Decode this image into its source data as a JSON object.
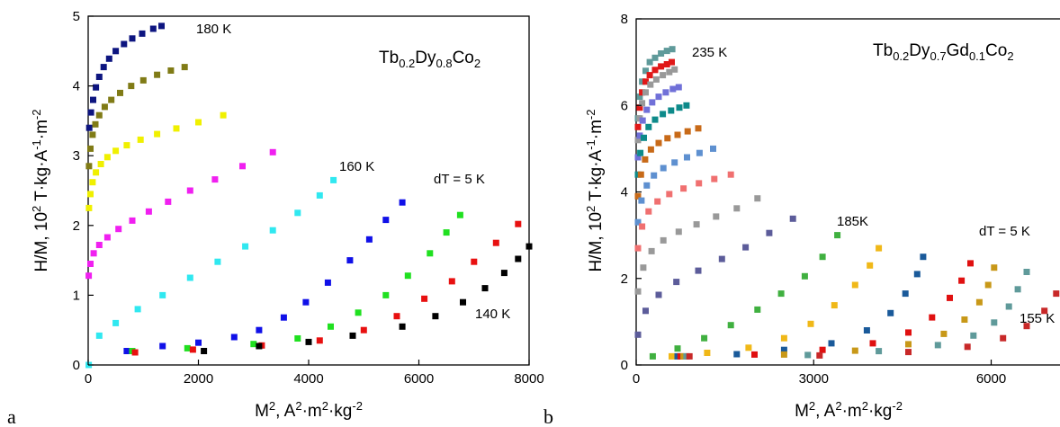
{
  "panels": [
    {
      "panel_label": "a",
      "composition": {
        "parts": [
          "Tb",
          "0.2",
          "Dy",
          "0.8",
          "Co",
          "2"
        ]
      },
      "step_label": "dT = 5 K",
      "ylabel": {
        "parts": [
          "H/M, 10",
          "2",
          " T·kg·A",
          "-1",
          "·m",
          "-2"
        ]
      },
      "xlabel": {
        "parts": [
          "M",
          "2",
          ", A",
          "2",
          "·m",
          "2",
          "·kg",
          "-2"
        ]
      }
    },
    {
      "panel_label": "b",
      "composition": {
        "parts": [
          "Tb",
          "0.2",
          "Dy",
          "0.7",
          "Gd",
          "0.1",
          "Co",
          "2"
        ]
      },
      "step_label": "dT = 5 K",
      "ylabel": {
        "parts": [
          "H/M, 10",
          "2",
          " T·kg·A",
          "-1",
          "·m",
          "-2"
        ]
      },
      "xlabel": {
        "parts": [
          "M",
          "2",
          ", A",
          "2",
          "·m",
          "2",
          "·kg",
          "-2"
        ]
      }
    }
  ],
  "chart_data": [
    {
      "type": "scatter",
      "title": "Tb0.2Dy0.8Co2",
      "xlim": [
        0,
        8000
      ],
      "ylim": [
        0,
        5
      ],
      "xticks": [
        0,
        2000,
        4000,
        6000,
        8000
      ],
      "yticks": [
        0,
        1,
        2,
        3,
        4,
        5
      ],
      "grid": false,
      "series": [
        {
          "name": "180 K",
          "color": "#0d1580",
          "x": [
            20,
            50,
            90,
            140,
            200,
            280,
            380,
            500,
            650,
            800,
            980,
            1180,
            1330
          ],
          "y": [
            3.4,
            3.62,
            3.8,
            3.98,
            4.13,
            4.27,
            4.39,
            4.5,
            4.6,
            4.68,
            4.75,
            4.82,
            4.86
          ]
        },
        {
          "name": "",
          "color": "#807b16",
          "x": [
            15,
            40,
            80,
            130,
            200,
            300,
            420,
            580,
            780,
            1000,
            1250,
            1500,
            1750
          ],
          "y": [
            2.85,
            3.1,
            3.3,
            3.45,
            3.58,
            3.7,
            3.8,
            3.9,
            4.0,
            4.08,
            4.16,
            4.22,
            4.27
          ]
        },
        {
          "name": "",
          "color": "#f0f000",
          "x": [
            15,
            40,
            80,
            140,
            230,
            350,
            500,
            700,
            950,
            1250,
            1600,
            2000,
            2450
          ],
          "y": [
            2.25,
            2.45,
            2.62,
            2.76,
            2.88,
            2.98,
            3.07,
            3.15,
            3.23,
            3.31,
            3.39,
            3.48,
            3.58
          ]
        },
        {
          "name": "",
          "color": "#f020f0",
          "x": [
            10,
            40,
            100,
            200,
            350,
            550,
            800,
            1100,
            1450,
            1850,
            2300,
            2800,
            3350
          ],
          "y": [
            1.28,
            1.45,
            1.6,
            1.72,
            1.83,
            1.95,
            2.07,
            2.2,
            2.34,
            2.5,
            2.66,
            2.85,
            3.05
          ]
        },
        {
          "name": "160 K",
          "color": "#30e8f0",
          "x": [
            10,
            200,
            500,
            900,
            1350,
            1850,
            2350,
            2850,
            3350,
            3800,
            4200,
            4450
          ],
          "y": [
            0.0,
            0.42,
            0.6,
            0.8,
            1.0,
            1.25,
            1.48,
            1.7,
            1.93,
            2.18,
            2.43,
            2.65
          ]
        },
        {
          "name": "",
          "color": "#1010e8",
          "x": [
            700,
            1350,
            2000,
            2650,
            3100,
            3550,
            3950,
            4350,
            4750,
            5100,
            5400,
            5700
          ],
          "y": [
            0.2,
            0.27,
            0.32,
            0.4,
            0.5,
            0.68,
            0.9,
            1.18,
            1.5,
            1.8,
            2.08,
            2.33
          ]
        },
        {
          "name": "",
          "color": "#20e020",
          "x": [
            800,
            1800,
            3000,
            3800,
            4400,
            4900,
            5400,
            5800,
            6200,
            6500,
            6750
          ],
          "y": [
            0.2,
            0.24,
            0.3,
            0.38,
            0.55,
            0.75,
            1.0,
            1.28,
            1.6,
            1.9,
            2.15
          ]
        },
        {
          "name": "",
          "color": "#e81010",
          "x": [
            850,
            1900,
            3150,
            4200,
            5000,
            5600,
            6100,
            6600,
            7000,
            7400,
            7800
          ],
          "y": [
            0.18,
            0.22,
            0.28,
            0.35,
            0.5,
            0.7,
            0.95,
            1.2,
            1.48,
            1.75,
            2.02
          ]
        },
        {
          "name": "140 K",
          "color": "#000000",
          "x": [
            2100,
            3100,
            4000,
            4800,
            5700,
            6300,
            6800,
            7200,
            7550,
            7800,
            8000
          ],
          "y": [
            0.2,
            0.27,
            0.33,
            0.42,
            0.55,
            0.7,
            0.9,
            1.1,
            1.32,
            1.52,
            1.7
          ]
        }
      ],
      "annotations": [
        "180 K",
        "160 K",
        "140 K",
        "dT = 5 K"
      ]
    },
    {
      "type": "scatter",
      "title": "Tb0.2Dy0.7Gd0.1Co2",
      "xlim": [
        0,
        7300
      ],
      "ylim": [
        0,
        8
      ],
      "xticks": [
        0,
        3000,
        6000
      ],
      "yticks": [
        0,
        2,
        4,
        6,
        8
      ],
      "grid": false,
      "series": [
        {
          "name": "235 K",
          "color": "#5f9a9a",
          "x": [
            30,
            60,
            100,
            160,
            230,
            320,
            420,
            520,
            610
          ],
          "y": [
            5.7,
            6.2,
            6.55,
            6.8,
            7.0,
            7.1,
            7.2,
            7.26,
            7.3
          ]
        },
        {
          "name": "",
          "color": "#e01818",
          "x": [
            30,
            60,
            100,
            160,
            230,
            320,
            420,
            520,
            600
          ],
          "y": [
            5.5,
            5.95,
            6.3,
            6.55,
            6.7,
            6.82,
            6.9,
            6.95,
            7.0
          ]
        },
        {
          "name": "",
          "color": "#999999",
          "x": [
            30,
            60,
            100,
            160,
            240,
            340,
            450,
            560,
            650
          ],
          "y": [
            5.2,
            5.7,
            6.05,
            6.3,
            6.48,
            6.6,
            6.7,
            6.77,
            6.83
          ]
        },
        {
          "name": "",
          "color": "#7070d8",
          "x": [
            30,
            60,
            110,
            180,
            270,
            380,
            500,
            620,
            720
          ],
          "y": [
            4.8,
            5.3,
            5.65,
            5.9,
            6.07,
            6.2,
            6.3,
            6.38,
            6.42
          ]
        },
        {
          "name": "",
          "color": "#0d8a8a",
          "x": [
            30,
            70,
            130,
            210,
            320,
            450,
            590,
            730,
            850
          ],
          "y": [
            4.4,
            4.9,
            5.25,
            5.5,
            5.67,
            5.8,
            5.88,
            5.95,
            6.0
          ]
        },
        {
          "name": "",
          "color": "#c86a18",
          "x": [
            30,
            80,
            150,
            250,
            380,
            530,
            700,
            870,
            1050
          ],
          "y": [
            3.9,
            4.4,
            4.75,
            4.98,
            5.13,
            5.24,
            5.32,
            5.4,
            5.47
          ]
        },
        {
          "name": "",
          "color": "#5e90d0",
          "x": [
            30,
            90,
            180,
            300,
            460,
            650,
            860,
            1070,
            1300
          ],
          "y": [
            3.3,
            3.8,
            4.15,
            4.38,
            4.55,
            4.68,
            4.8,
            4.9,
            5.0
          ]
        },
        {
          "name": "",
          "color": "#f07070",
          "x": [
            30,
            100,
            210,
            360,
            560,
            800,
            1060,
            1320,
            1600
          ],
          "y": [
            2.7,
            3.2,
            3.55,
            3.78,
            3.95,
            4.08,
            4.2,
            4.3,
            4.4
          ]
        },
        {
          "name": "",
          "color": "#999999",
          "x": [
            30,
            120,
            260,
            460,
            720,
            1020,
            1350,
            1700,
            2050
          ],
          "y": [
            1.7,
            2.25,
            2.63,
            2.88,
            3.08,
            3.25,
            3.43,
            3.62,
            3.85
          ]
        },
        {
          "name": "",
          "color": "#5c5c9a",
          "x": [
            30,
            160,
            380,
            680,
            1050,
            1450,
            1850,
            2250,
            2650
          ],
          "y": [
            0.7,
            1.25,
            1.62,
            1.92,
            2.18,
            2.45,
            2.72,
            3.05,
            3.38
          ]
        },
        {
          "name": "185K",
          "color": "#40b040",
          "x": [
            280,
            700,
            1150,
            1600,
            2050,
            2450,
            2850,
            3150,
            3400
          ],
          "y": [
            0.2,
            0.38,
            0.62,
            0.92,
            1.28,
            1.65,
            2.05,
            2.5,
            3.0
          ]
        },
        {
          "name": "",
          "color": "#f0b818",
          "x": [
            600,
            1200,
            1900,
            2500,
            2950,
            3350,
            3700,
            3950,
            4100
          ],
          "y": [
            0.2,
            0.28,
            0.4,
            0.62,
            0.95,
            1.38,
            1.85,
            2.3,
            2.7
          ]
        },
        {
          "name": "",
          "color": "#1a5a9a",
          "x": [
            700,
            1700,
            2500,
            3300,
            3900,
            4300,
            4550,
            4750,
            4850
          ],
          "y": [
            0.2,
            0.25,
            0.35,
            0.5,
            0.8,
            1.2,
            1.65,
            2.1,
            2.5
          ]
        },
        {
          "name": "",
          "color": "#e01010",
          "x": [
            750,
            2000,
            3150,
            4000,
            4600,
            5000,
            5300,
            5500,
            5650
          ],
          "y": [
            0.2,
            0.24,
            0.35,
            0.5,
            0.75,
            1.1,
            1.55,
            1.95,
            2.35
          ]
        },
        {
          "name": "",
          "color": "#c89818",
          "x": [
            800,
            2500,
            3700,
            4600,
            5200,
            5550,
            5800,
            5950,
            6050
          ],
          "y": [
            0.2,
            0.24,
            0.33,
            0.48,
            0.72,
            1.05,
            1.45,
            1.85,
            2.25
          ]
        },
        {
          "name": "",
          "color": "#5f9a9a",
          "x": [
            850,
            2900,
            4100,
            5100,
            5700,
            6050,
            6300,
            6450,
            6600
          ],
          "y": [
            0.2,
            0.23,
            0.32,
            0.46,
            0.68,
            0.98,
            1.35,
            1.75,
            2.15
          ]
        },
        {
          "name": "155 K",
          "color": "#c82828",
          "x": [
            900,
            3100,
            4600,
            5600,
            6200,
            6600,
            6900,
            7100,
            7300
          ],
          "y": [
            0.2,
            0.22,
            0.3,
            0.42,
            0.62,
            0.9,
            1.25,
            1.65,
            2.05
          ]
        }
      ],
      "annotations": [
        "235 K",
        "185K",
        "155 K",
        "dT = 5 K"
      ]
    }
  ]
}
